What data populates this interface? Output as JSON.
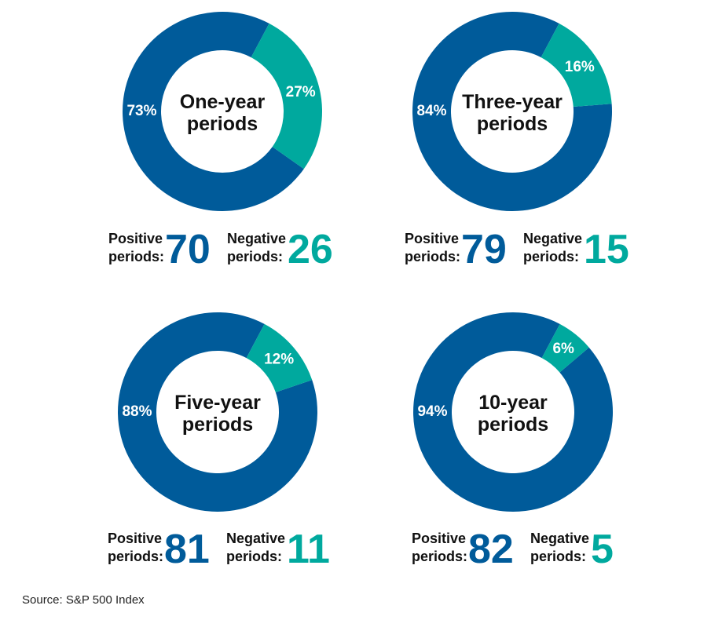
{
  "colors": {
    "positive": "#005b9a",
    "negative": "#00a99e",
    "center": "#ffffff",
    "text": "#111111"
  },
  "labels": {
    "positive_line1": "Positive",
    "negative_line1": "Negative",
    "line2": "periods:"
  },
  "chart_data": [
    {
      "type": "pie",
      "title": [
        "One-year",
        "periods"
      ],
      "series": [
        {
          "name": "Positive",
          "value": 73,
          "label": "73%"
        },
        {
          "name": "Negative",
          "value": 27,
          "label": "27%"
        }
      ],
      "positive_periods": "70",
      "negative_periods": "26"
    },
    {
      "type": "pie",
      "title": [
        "Three-year",
        "periods"
      ],
      "series": [
        {
          "name": "Positive",
          "value": 84,
          "label": "84%"
        },
        {
          "name": "Negative",
          "value": 16,
          "label": "16%"
        }
      ],
      "positive_periods": "79",
      "negative_periods": "15"
    },
    {
      "type": "pie",
      "title": [
        "Five-year",
        "periods"
      ],
      "series": [
        {
          "name": "Positive",
          "value": 88,
          "label": "88%"
        },
        {
          "name": "Negative",
          "value": 12,
          "label": "12%"
        }
      ],
      "positive_periods": "81",
      "negative_periods": "11"
    },
    {
      "type": "pie",
      "title": [
        "10-year",
        "periods"
      ],
      "series": [
        {
          "name": "Positive",
          "value": 94,
          "label": "94%"
        },
        {
          "name": "Negative",
          "value": 6,
          "label": "6%"
        }
      ],
      "positive_periods": "82",
      "negative_periods": "5"
    }
  ],
  "source": "Source: S&P 500 Index"
}
